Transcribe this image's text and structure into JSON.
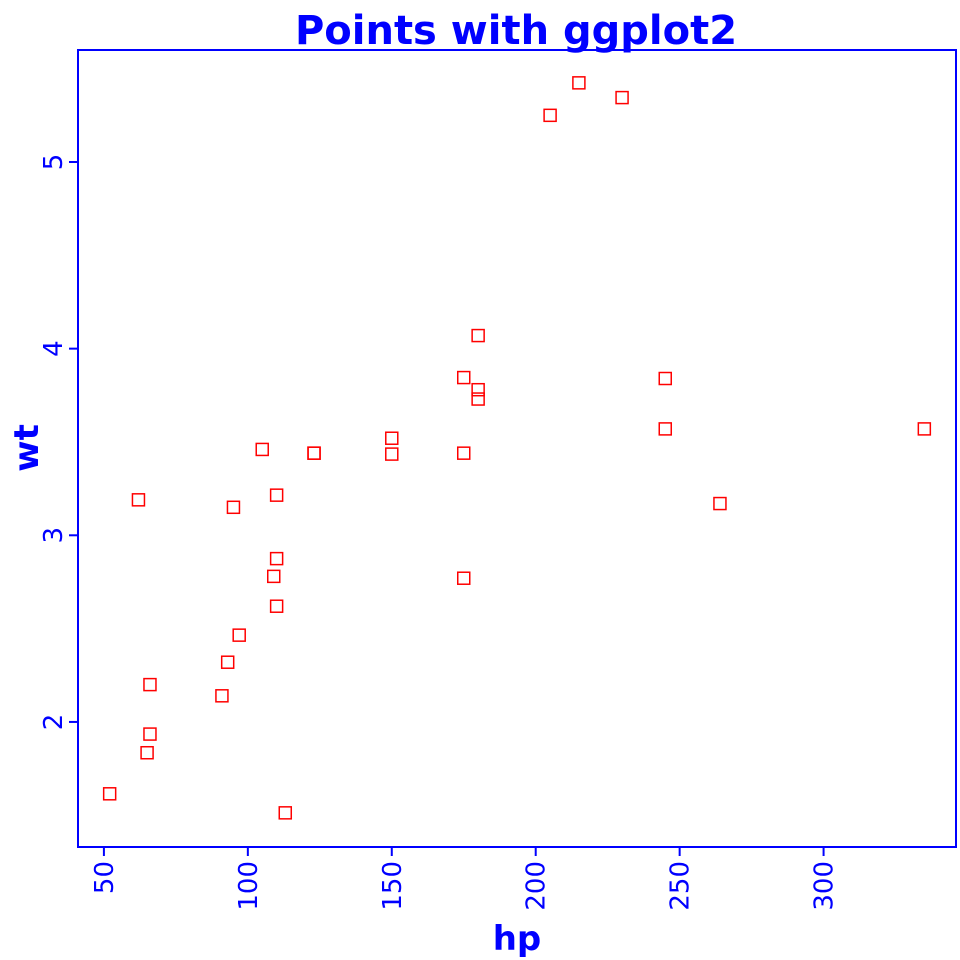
{
  "chart_data": {
    "type": "scatter",
    "title": "Points with ggplot2",
    "xlabel": "hp",
    "ylabel": "wt",
    "xlim": [
      41,
      346
    ],
    "ylim": [
      1.33,
      5.6
    ],
    "xticks": [
      50,
      100,
      150,
      200,
      250,
      300
    ],
    "yticks": [
      2,
      3,
      4,
      5
    ],
    "xtick_labels": [
      "50",
      "100",
      "150",
      "200",
      "250",
      "300"
    ],
    "ytick_labels": [
      "2",
      "3",
      "4",
      "5"
    ],
    "grid": false,
    "legend": "none",
    "marker": "open-square",
    "colors": {
      "text": "#0000ff",
      "frame": "#0000ff",
      "points": "#ff0000",
      "background": "#ffffff"
    },
    "series": [
      {
        "points": [
          {
            "x": 110,
            "y": 2.62
          },
          {
            "x": 110,
            "y": 2.875
          },
          {
            "x": 93,
            "y": 2.32
          },
          {
            "x": 110,
            "y": 3.215
          },
          {
            "x": 175,
            "y": 3.44
          },
          {
            "x": 105,
            "y": 3.46
          },
          {
            "x": 245,
            "y": 3.57
          },
          {
            "x": 62,
            "y": 3.19
          },
          {
            "x": 95,
            "y": 3.15
          },
          {
            "x": 123,
            "y": 3.44
          },
          {
            "x": 123,
            "y": 3.44
          },
          {
            "x": 180,
            "y": 4.07
          },
          {
            "x": 180,
            "y": 3.73
          },
          {
            "x": 180,
            "y": 3.78
          },
          {
            "x": 205,
            "y": 5.25
          },
          {
            "x": 215,
            "y": 5.424
          },
          {
            "x": 230,
            "y": 5.345
          },
          {
            "x": 66,
            "y": 2.2
          },
          {
            "x": 52,
            "y": 1.615
          },
          {
            "x": 65,
            "y": 1.835
          },
          {
            "x": 97,
            "y": 2.465
          },
          {
            "x": 150,
            "y": 3.52
          },
          {
            "x": 150,
            "y": 3.435
          },
          {
            "x": 245,
            "y": 3.84
          },
          {
            "x": 175,
            "y": 3.845
          },
          {
            "x": 66,
            "y": 1.935
          },
          {
            "x": 91,
            "y": 2.14
          },
          {
            "x": 113,
            "y": 1.513
          },
          {
            "x": 264,
            "y": 3.17
          },
          {
            "x": 175,
            "y": 2.77
          },
          {
            "x": 335,
            "y": 3.57
          },
          {
            "x": 109,
            "y": 2.78
          }
        ]
      }
    ]
  }
}
